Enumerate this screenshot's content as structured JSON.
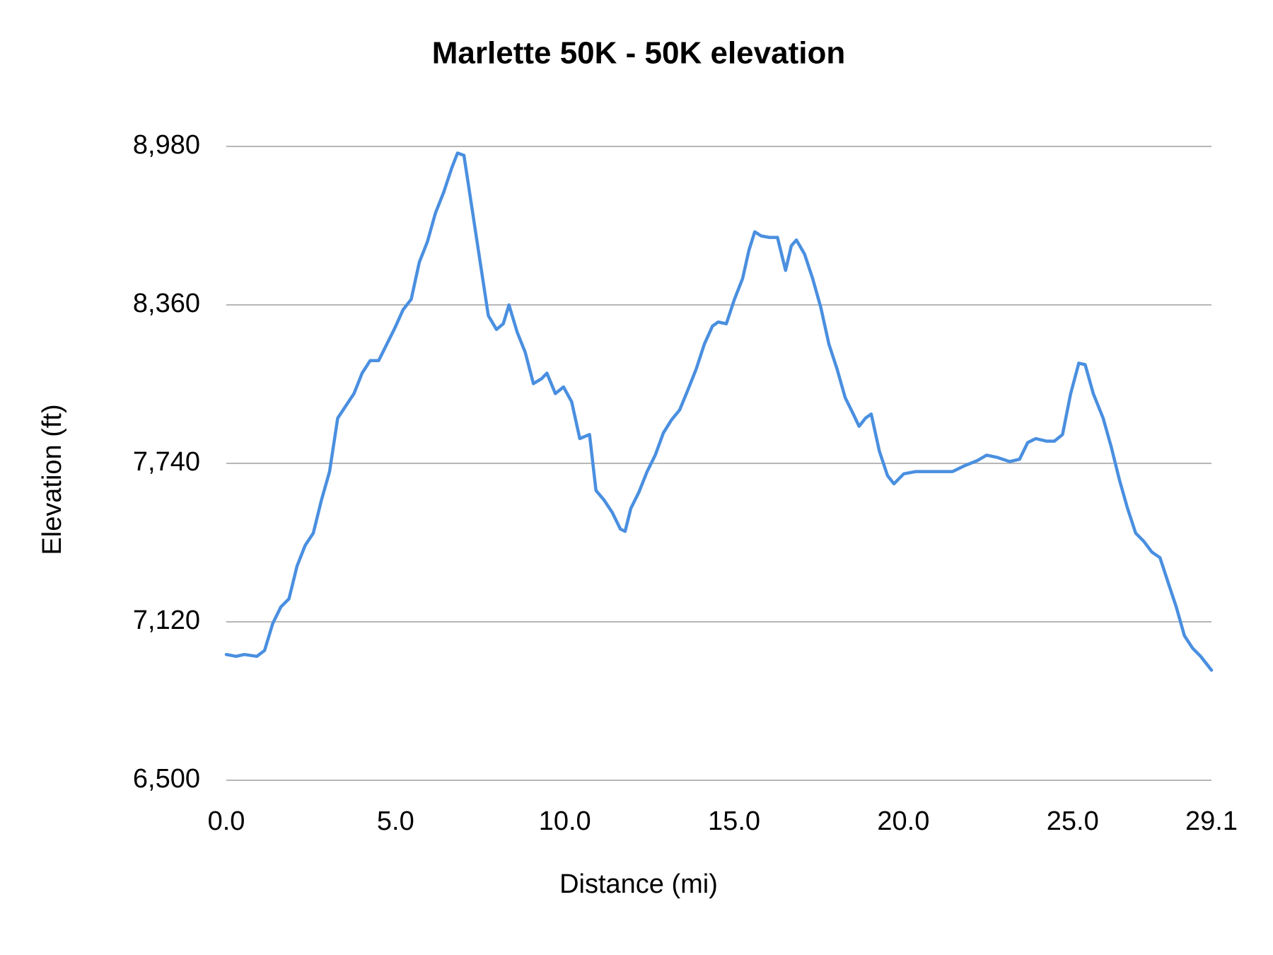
{
  "chart_data": {
    "type": "line",
    "title": "Marlette 50K - 50K elevation",
    "x_label": "Distance (mi)",
    "y_label": "Elevation (ft)",
    "color": "#4a8fe0",
    "grid": true,
    "xlim": [
      0,
      29.1
    ],
    "ylim": [
      6500,
      8980
    ],
    "xticks": [
      {
        "value": 0,
        "label": "0.0"
      },
      {
        "value": 5,
        "label": "5.0"
      },
      {
        "value": 10,
        "label": "10.0"
      },
      {
        "value": 15,
        "label": "15.0"
      },
      {
        "value": 20,
        "label": "20.0"
      },
      {
        "value": 25,
        "label": "25.0"
      },
      29.1
    ],
    "yticks": [
      {
        "value": 6500,
        "label": "6,500"
      },
      {
        "value": 7120,
        "label": "7,120"
      },
      {
        "value": 7740,
        "label": "7,740"
      },
      {
        "value": 8360,
        "label": "8,360"
      },
      {
        "value": 8980,
        "label": "8,980"
      }
    ],
    "x": [
      0,
      0.29,
      0.53,
      0.9,
      1.13,
      1.37,
      1.61,
      1.85,
      2.09,
      2.33,
      2.57,
      2.81,
      3.05,
      3.29,
      3.53,
      3.77,
      4.01,
      4.25,
      4.5,
      4.74,
      4.98,
      5.22,
      5.46,
      5.7,
      5.94,
      6.18,
      6.42,
      6.66,
      6.83,
      7.02,
      7.26,
      7.5,
      7.74,
      7.98,
      8.18,
      8.35,
      8.59,
      8.83,
      9.07,
      9.31,
      9.47,
      9.72,
      9.96,
      10.2,
      10.44,
      10.73,
      10.92,
      11.16,
      11.4,
      11.64,
      11.78,
      11.95,
      12.19,
      12.43,
      12.67,
      12.91,
      13.15,
      13.39,
      13.64,
      13.88,
      14.12,
      14.36,
      14.53,
      14.77,
      15.01,
      15.25,
      15.44,
      15.61,
      15.8,
      16.04,
      16.28,
      16.52,
      16.69,
      16.84,
      17.08,
      17.32,
      17.56,
      17.8,
      18.04,
      18.28,
      18.52,
      18.69,
      18.88,
      19.05,
      19.29,
      19.53,
      19.72,
      20.01,
      20.37,
      20.73,
      21.09,
      21.45,
      21.81,
      22.17,
      22.46,
      22.78,
      23.14,
      23.43,
      23.67,
      23.91,
      24.22,
      24.46,
      24.7,
      24.94,
      25.18,
      25.37,
      25.61,
      25.9,
      26.14,
      26.38,
      26.62,
      26.86,
      27.1,
      27.34,
      27.58,
      27.82,
      28.06,
      28.3,
      28.54,
      28.78,
      29.1
    ],
    "values": [
      6992,
      6985,
      6992,
      6985,
      7008,
      7113,
      7178,
      7210,
      7338,
      7419,
      7467,
      7596,
      7708,
      7917,
      7965,
      8013,
      8093,
      8142,
      8142,
      8206,
      8270,
      8341,
      8382,
      8527,
      8607,
      8720,
      8800,
      8896,
      8954,
      8945,
      8736,
      8527,
      8318,
      8264,
      8286,
      8360,
      8254,
      8174,
      8052,
      8071,
      8093,
      8013,
      8039,
      7981,
      7837,
      7853,
      7634,
      7596,
      7548,
      7483,
      7474,
      7564,
      7628,
      7708,
      7772,
      7859,
      7910,
      7949,
      8029,
      8109,
      8206,
      8277,
      8293,
      8286,
      8382,
      8463,
      8575,
      8646,
      8630,
      8624,
      8624,
      8495,
      8591,
      8614,
      8559,
      8463,
      8350,
      8206,
      8109,
      7997,
      7933,
      7885,
      7917,
      7933,
      7788,
      7692,
      7660,
      7699,
      7708,
      7708,
      7708,
      7708,
      7731,
      7750,
      7772,
      7763,
      7747,
      7756,
      7821,
      7837,
      7827,
      7827,
      7853,
      8013,
      8132,
      8126,
      8013,
      7917,
      7804,
      7676,
      7564,
      7467,
      7435,
      7393,
      7371,
      7274,
      7178,
      7066,
      7017,
      6985,
      6931
    ]
  }
}
